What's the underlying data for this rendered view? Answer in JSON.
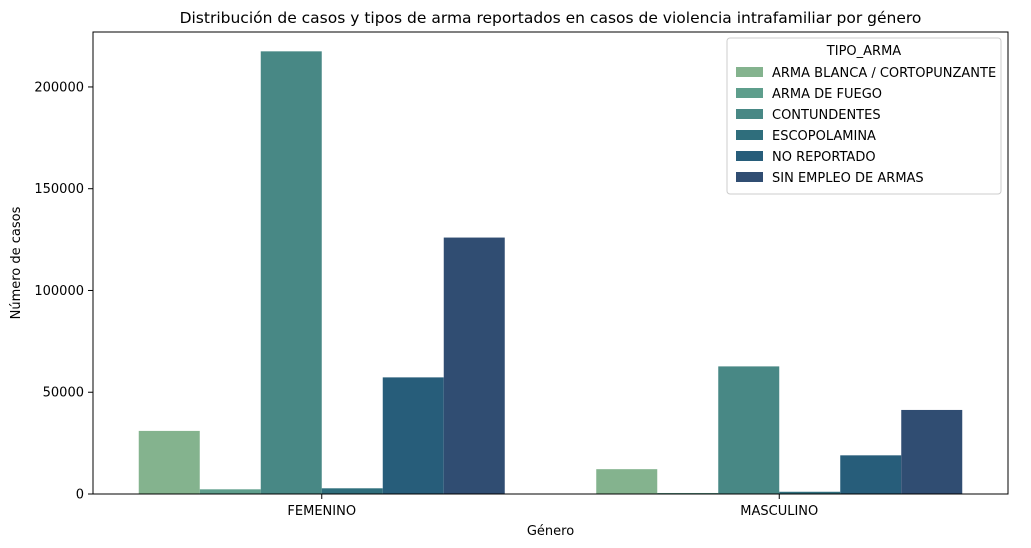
{
  "chart_data": {
    "type": "bar",
    "title": "Distribución de casos y tipos de arma reportados en casos de violencia intrafamiliar por género",
    "xlabel": "Género",
    "ylabel": "Número de casos",
    "categories": [
      "FEMENINO",
      "MASCULINO"
    ],
    "ylim": [
      0,
      227000
    ],
    "yticks": [
      0,
      50000,
      100000,
      150000,
      200000
    ],
    "legend": {
      "title": "TIPO_ARMA",
      "placement": "upper-right"
    },
    "grid": false,
    "series": [
      {
        "name": "ARMA BLANCA / CORTOPUNZANTE",
        "color": "#84b38e",
        "values": [
          31000,
          12200
        ]
      },
      {
        "name": "ARMA DE FUEGO",
        "color": "#5e9e8c",
        "values": [
          2300,
          500
        ]
      },
      {
        "name": "CONTUNDENTES",
        "color": "#488885",
        "values": [
          217500,
          62700
        ]
      },
      {
        "name": "ESCOPOLAMINA",
        "color": "#2f6e7c",
        "values": [
          2800,
          1100
        ]
      },
      {
        "name": "NO REPORTADO",
        "color": "#275d7a",
        "values": [
          57300,
          19000
        ]
      },
      {
        "name": "SIN EMPLEO DE ARMAS",
        "color": "#304d72",
        "values": [
          126000,
          41300
        ]
      }
    ]
  }
}
